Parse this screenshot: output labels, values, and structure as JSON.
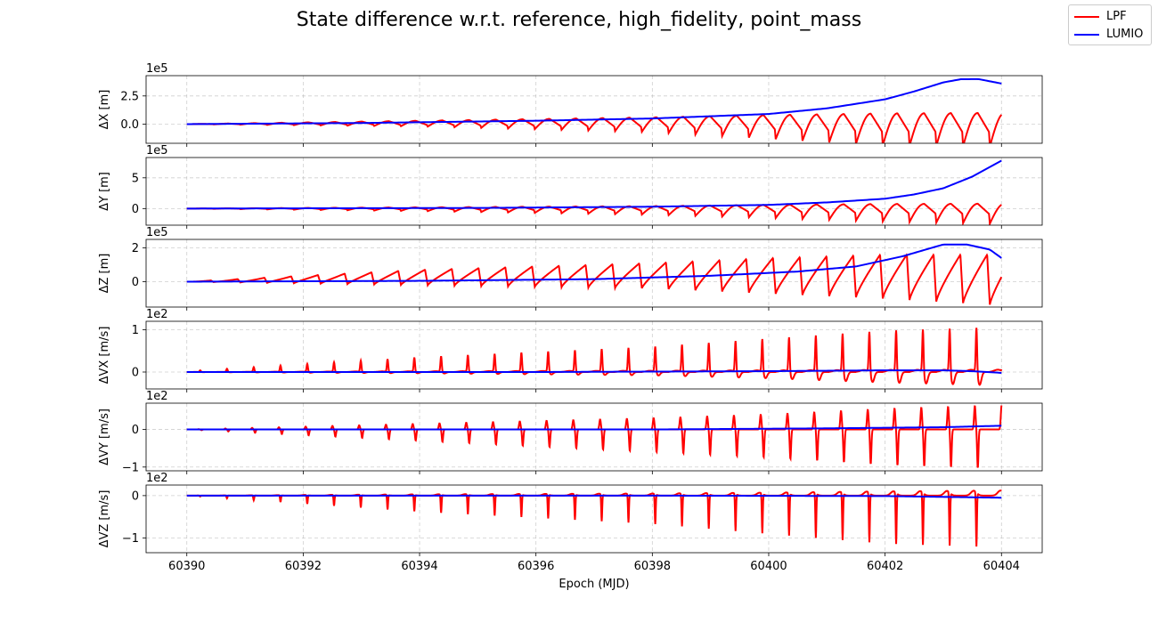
{
  "chart_data": {
    "type": "line",
    "title": "State difference w.r.t. reference, high_fidelity, point_mass",
    "xlabel": "Epoch (MJD)",
    "xlim": [
      60389.3,
      60404.7
    ],
    "xticks": [
      60390,
      60392,
      60394,
      60396,
      60398,
      60400,
      60402,
      60404
    ],
    "grid": true,
    "legend_position": "top-right",
    "series_styles": [
      {
        "name": "LPF",
        "color": "#ff0000"
      },
      {
        "name": "LUMIO",
        "color": "#0000ff"
      }
    ],
    "oscillation_period_days": 0.46,
    "panels": [
      {
        "ylabel": "ΔX [m]",
        "offset": "1e5",
        "ylim": [
          -1.7,
          4.3
        ],
        "yticks": [
          0.0,
          2.5
        ],
        "ytick_labels": [
          "0.0",
          "2.5"
        ],
        "series": [
          {
            "name": "LPF",
            "envelope": {
              "x": [
                60390,
                60394,
                60398,
                60400,
                60402,
                60404
              ],
              "upper": [
                0,
                0.3,
                0.6,
                0.8,
                0.95,
                1.0
              ],
              "lower": [
                0,
                -0.2,
                -0.7,
                -1.3,
                -1.9,
                -2.0
              ]
            },
            "profile": "sawtooth"
          },
          {
            "name": "LUMIO",
            "x": [
              60390,
              60393,
              60396,
              60398,
              60400,
              60401,
              60402,
              60402.5,
              60403,
              60403.3,
              60403.6,
              60404
            ],
            "y": [
              0,
              0.1,
              0.3,
              0.5,
              0.9,
              1.4,
              2.2,
              2.9,
              3.7,
              3.98,
              4.0,
              3.6
            ]
          }
        ]
      },
      {
        "ylabel": "ΔY [m]",
        "offset": "1e5",
        "ylim": [
          -2.7,
          8.3
        ],
        "yticks": [
          0,
          5
        ],
        "ytick_labels": [
          "0",
          "5"
        ],
        "series": [
          {
            "name": "LPF",
            "envelope": {
              "x": [
                60390,
                60394,
                60398,
                60400,
                60402,
                60404
              ],
              "upper": [
                0,
                0.2,
                0.4,
                0.6,
                0.75,
                0.8
              ],
              "lower": [
                0,
                -0.4,
                -1.0,
                -1.5,
                -2.1,
                -2.5
              ]
            },
            "profile": "sawtooth"
          },
          {
            "name": "LUMIO",
            "x": [
              60390,
              60395,
              60398,
              60400,
              60401,
              60402,
              60402.5,
              60403,
              60403.5,
              60404
            ],
            "y": [
              0,
              0.1,
              0.3,
              0.6,
              1.0,
              1.6,
              2.3,
              3.3,
              5.2,
              7.8
            ]
          }
        ]
      },
      {
        "ylabel": "ΔZ [m]",
        "offset": "1e5",
        "ylim": [
          -1.5,
          2.5
        ],
        "yticks": [
          0,
          2
        ],
        "ytick_labels": [
          "0",
          "2"
        ],
        "series": [
          {
            "name": "LPF",
            "envelope": {
              "x": [
                60390,
                60394,
                60398,
                60400,
                60402,
                60404
              ],
              "upper": [
                0,
                0.7,
                1.1,
                1.4,
                1.6,
                1.6
              ],
              "lower": [
                0,
                -0.2,
                -0.4,
                -0.7,
                -1.0,
                -1.4
              ]
            },
            "profile": "rising"
          },
          {
            "name": "LUMIO",
            "x": [
              60390,
              60394,
              60397,
              60399,
              60400.5,
              60401.5,
              60402.3,
              60403,
              60403.4,
              60403.8,
              60404
            ],
            "y": [
              0,
              0.05,
              0.15,
              0.35,
              0.6,
              0.9,
              1.5,
              2.2,
              2.2,
              1.9,
              1.4
            ]
          }
        ]
      },
      {
        "ylabel": "ΔVX [m/s]",
        "offset": "1e2",
        "ylim": [
          -0.4,
          1.2
        ],
        "yticks": [
          0,
          1
        ],
        "ytick_labels": [
          "0",
          "1"
        ],
        "series": [
          {
            "name": "LPF",
            "envelope": {
              "x": [
                60390,
                60394,
                60398,
                60400,
                60402,
                60404
              ],
              "upper": [
                0.02,
                0.35,
                0.6,
                0.8,
                1.0,
                1.1
              ],
              "lower": [
                0,
                -0.03,
                -0.08,
                -0.15,
                -0.25,
                -0.32
              ]
            },
            "profile": "spike-up"
          },
          {
            "name": "LUMIO",
            "x": [
              60390,
              60396,
              60400,
              60402,
              60403,
              60403.5,
              60404
            ],
            "y": [
              0,
              0,
              0.02,
              0.04,
              0.04,
              0.02,
              -0.02
            ]
          }
        ]
      },
      {
        "ylabel": "ΔVY [m/s]",
        "offset": "1e2",
        "ylim": [
          -1.1,
          0.7
        ],
        "yticks": [
          -1,
          0
        ],
        "ytick_labels": [
          "−1",
          "0"
        ],
        "series": [
          {
            "name": "LPF",
            "envelope": {
              "x": [
                60390,
                60394,
                60398,
                60400,
                60402,
                60404
              ],
              "upper": [
                0,
                0.15,
                0.3,
                0.4,
                0.55,
                0.65
              ],
              "lower": [
                0,
                -0.3,
                -0.6,
                -0.75,
                -0.95,
                -1.05
              ]
            },
            "profile": "spike-bi"
          },
          {
            "name": "LUMIO",
            "x": [
              60390,
              60398,
              60401,
              60403,
              60404
            ],
            "y": [
              0,
              0,
              0.03,
              0.06,
              0.1
            ]
          }
        ]
      },
      {
        "ylabel": "ΔVZ [m/s]",
        "offset": "1e2",
        "ylim": [
          -1.35,
          0.25
        ],
        "yticks": [
          -1,
          0
        ],
        "ytick_labels": [
          "−1",
          "0"
        ],
        "series": [
          {
            "name": "LPF",
            "envelope": {
              "x": [
                60390,
                60394,
                60398,
                60400,
                60402,
                60404
              ],
              "upper": [
                0,
                0.03,
                0.05,
                0.07,
                0.1,
                0.12
              ],
              "lower": [
                0,
                -0.4,
                -0.7,
                -0.95,
                -1.2,
                -1.3
              ]
            },
            "profile": "spike-down"
          },
          {
            "name": "LUMIO",
            "x": [
              60390,
              60398,
              60402,
              60404
            ],
            "y": [
              0,
              0,
              -0.01,
              -0.05
            ]
          }
        ]
      }
    ],
    "legend": [
      "LPF",
      "LUMIO"
    ]
  }
}
